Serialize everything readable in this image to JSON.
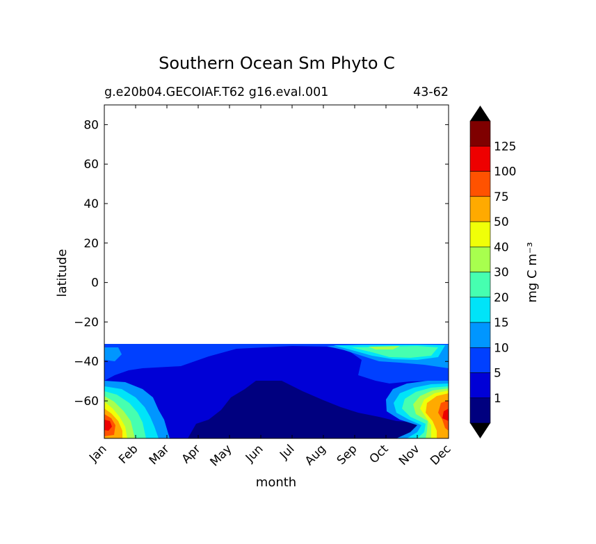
{
  "chart_data": {
    "type": "heatmap",
    "title": "Southern Ocean Sm Phyto C",
    "subtitle_left": "g.e20b04.GECOIAF.T62 g16.eval.001",
    "subtitle_right": "43-62",
    "xlabel": "month",
    "ylabel": "latitude",
    "x_ticks": [
      "Jan",
      "Feb",
      "Mar",
      "Apr",
      "May",
      "Jun",
      "Jul",
      "Aug",
      "Sep",
      "Oct",
      "Nov",
      "Dec"
    ],
    "y_ticks": [
      "80",
      "60",
      "40",
      "20",
      "0",
      "−20",
      "−40",
      "−60"
    ],
    "y_tick_values": [
      80,
      60,
      40,
      20,
      0,
      -20,
      -40,
      -60
    ],
    "ylim": [
      -79,
      90
    ],
    "data_lat_range": [
      -79,
      -32
    ],
    "colorbar": {
      "label": "mg C m⁻³",
      "extend": "both",
      "levels": [
        "1",
        "5",
        "10",
        "15",
        "20",
        "30",
        "40",
        "50",
        "75",
        "100",
        "125"
      ],
      "colors": [
        "#00007f",
        "#0000d6",
        "#0040ff",
        "#0096ff",
        "#00e4f8",
        "#46ffb0",
        "#a8ff4e",
        "#f0ff08",
        "#ffaa00",
        "#ff5200",
        "#ee0000",
        "#7f0000"
      ],
      "under_color": "#000000",
      "over_color": "#000000"
    }
  }
}
